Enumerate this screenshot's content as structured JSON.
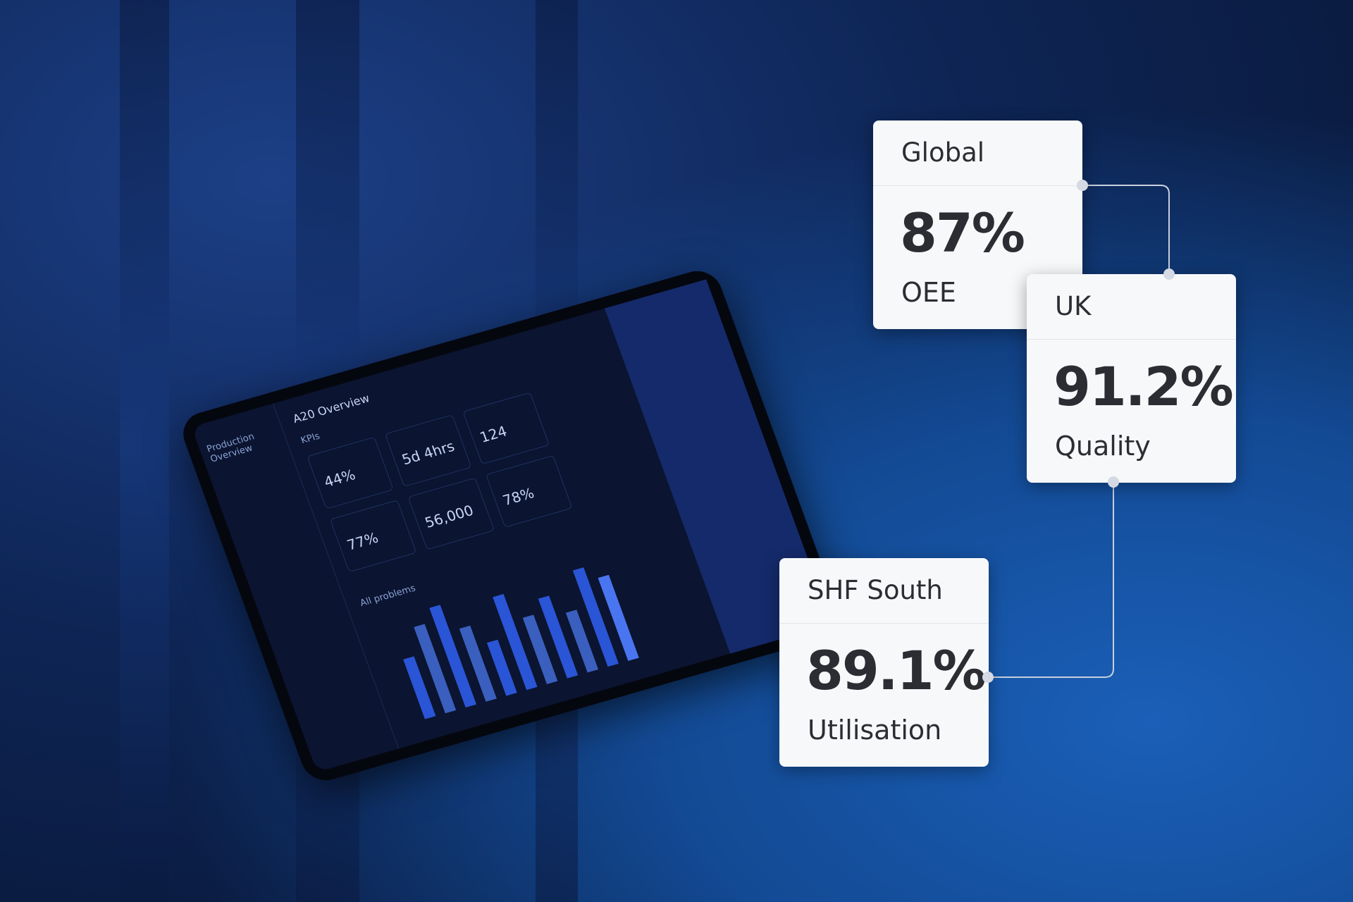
{
  "cards": [
    {
      "label": "Global",
      "value": "87%",
      "metric": "OEE"
    },
    {
      "label": "UK",
      "value": "91.2%",
      "metric": "Quality"
    },
    {
      "label": "SHF South",
      "value": "89.1%",
      "metric": "Utilisation"
    }
  ],
  "tablet": {
    "title": "Production Overview",
    "heading": "A20 Overview",
    "section": "KPIs",
    "kpis": [
      "44%",
      "5d 4hrs",
      "124",
      "77%",
      "56,000",
      "78%"
    ],
    "chart_title": "All problems"
  }
}
